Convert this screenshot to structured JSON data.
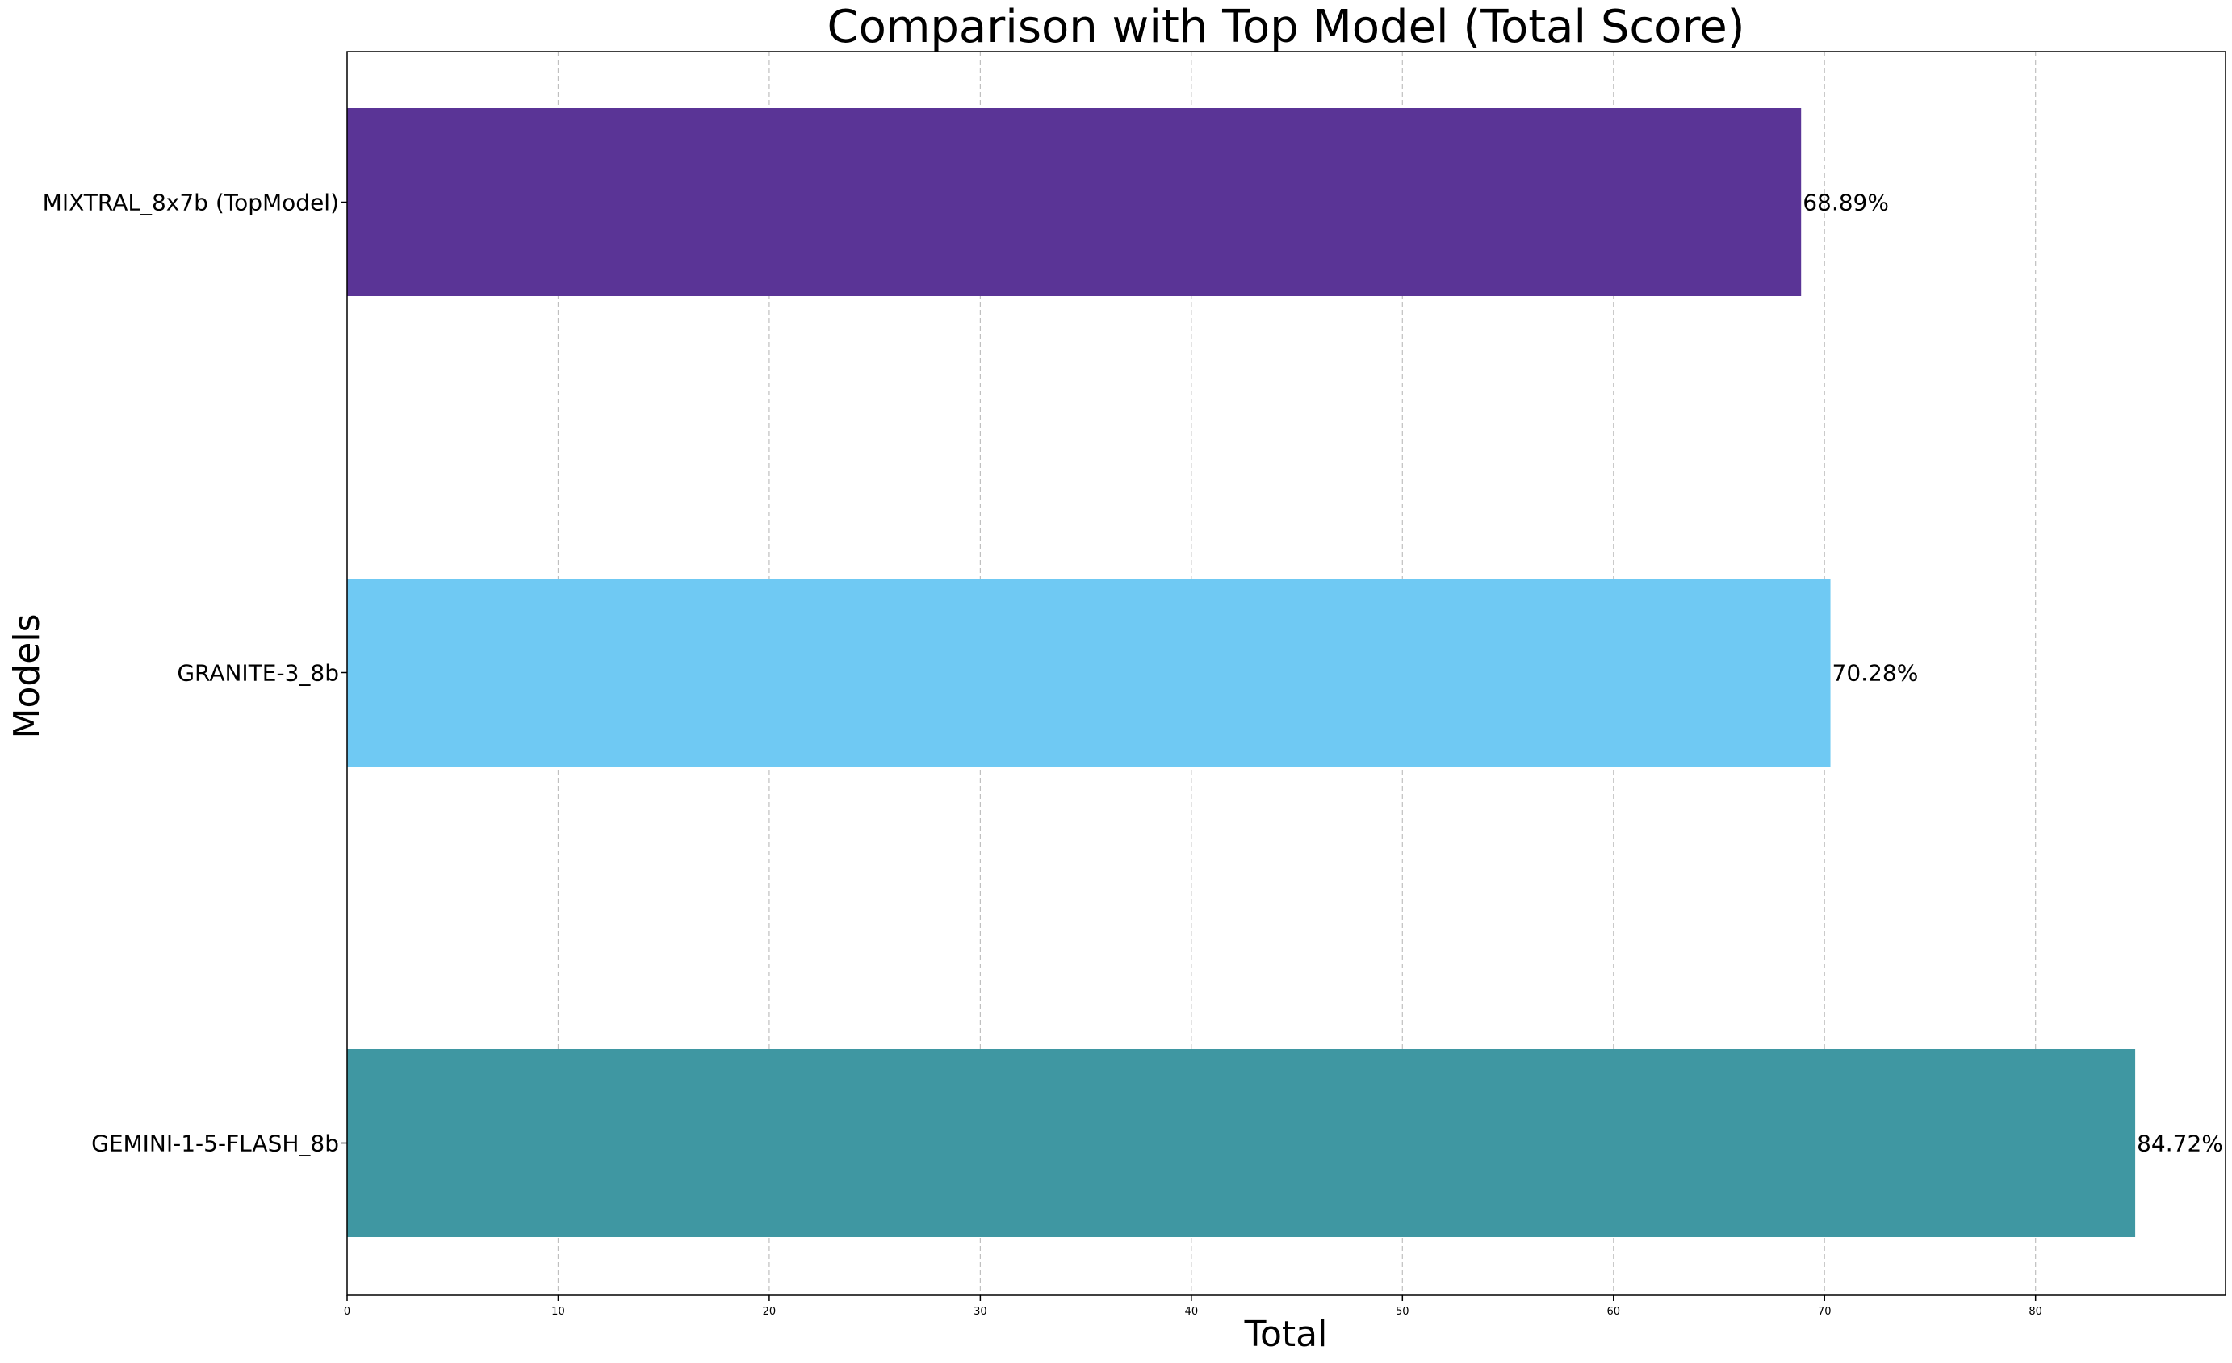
{
  "chart_data": {
    "type": "bar",
    "orientation": "horizontal",
    "title": "Comparison with Top Model (Total Score)",
    "xlabel": "Total",
    "ylabel": "Models",
    "categories": [
      "MIXTRAL_8x7b (TopModel)",
      "GRANITE-3_8b",
      "GEMINI-1-5-FLASH_8b"
    ],
    "values": [
      68.89,
      70.28,
      84.72
    ],
    "value_labels": [
      "68.89%",
      "70.28%",
      "84.72%"
    ],
    "colors": [
      "#5a3496",
      "#6fc9f3",
      "#3f97a2"
    ],
    "xlim": [
      0,
      89
    ],
    "xticks": [
      0,
      10,
      20,
      30,
      40,
      50,
      60,
      70,
      80
    ],
    "grid": "vertical dashed",
    "legend": "none"
  }
}
